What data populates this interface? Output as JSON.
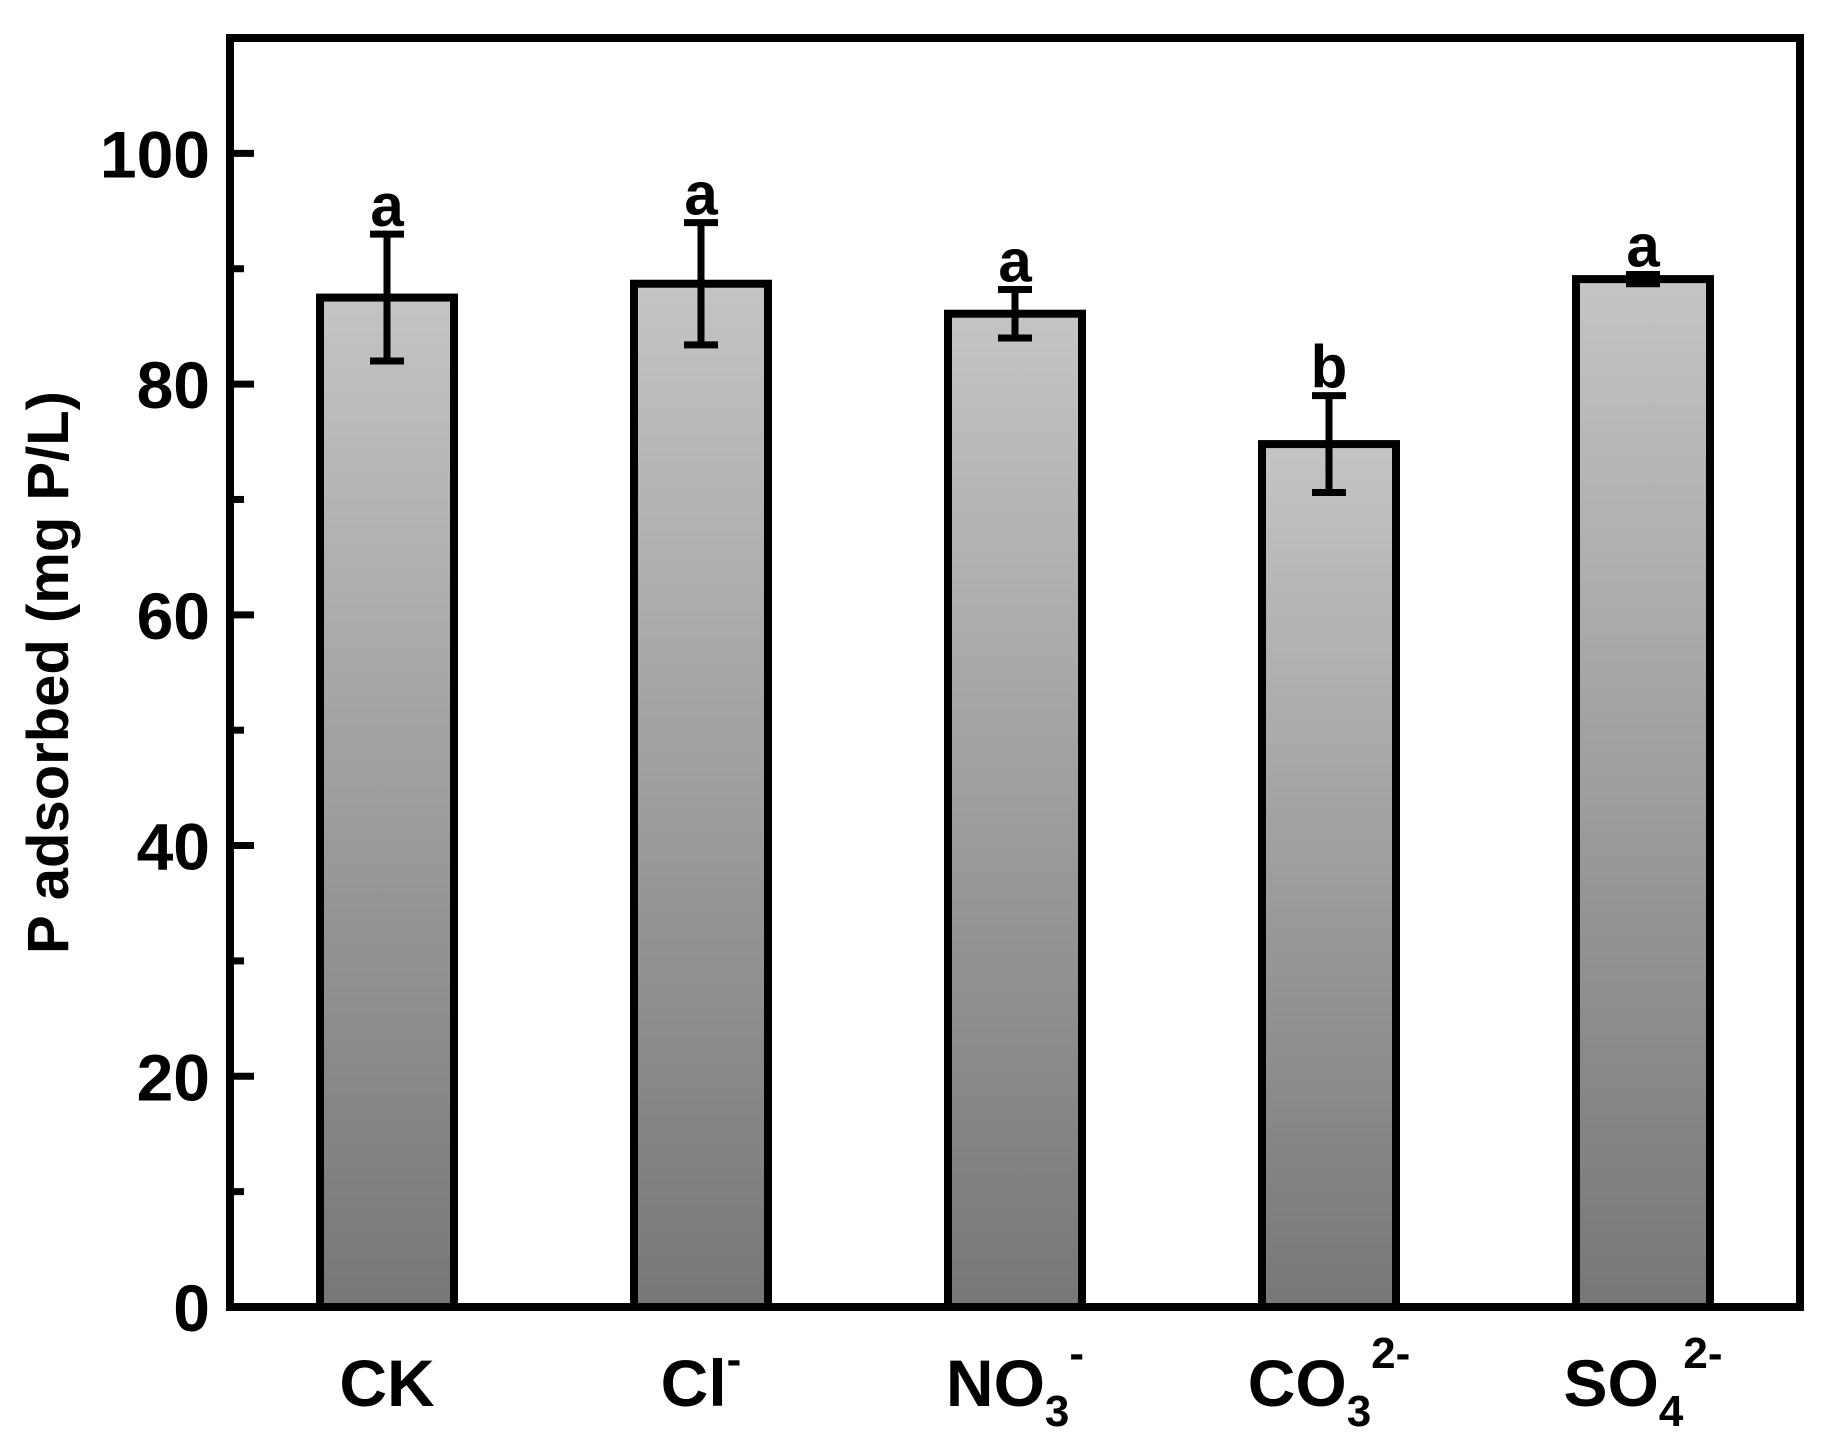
{
  "chart_data": {
    "type": "bar",
    "title": "",
    "xlabel": "",
    "ylabel": "P adsorbed (mg P/L)",
    "ylim": [
      0,
      110
    ],
    "yticks_major": [
      0,
      20,
      40,
      60,
      80,
      100
    ],
    "yticks_minor": [
      10,
      30,
      50,
      70,
      90
    ],
    "grid": false,
    "legend": "none",
    "categories": [
      {
        "base": "CK",
        "sub": "",
        "sup": ""
      },
      {
        "base": "Cl",
        "sub": "",
        "sup": "-"
      },
      {
        "base": "NO",
        "sub": "3",
        "sup": "-"
      },
      {
        "base": "CO",
        "sub": "3",
        "sup": "2-"
      },
      {
        "base": "SO",
        "sub": "4",
        "sup": "2-"
      }
    ],
    "values": [
      87.5,
      88.7,
      86.1,
      74.8,
      89.1
    ],
    "errors": [
      5.5,
      5.3,
      2.1,
      4.2,
      0.4
    ],
    "significance": [
      "a",
      "a",
      "a",
      "b",
      "a"
    ],
    "colors": {
      "bar_top": "#c4c4c4",
      "bar_bottom": "#777777",
      "outline": "#000000"
    }
  }
}
